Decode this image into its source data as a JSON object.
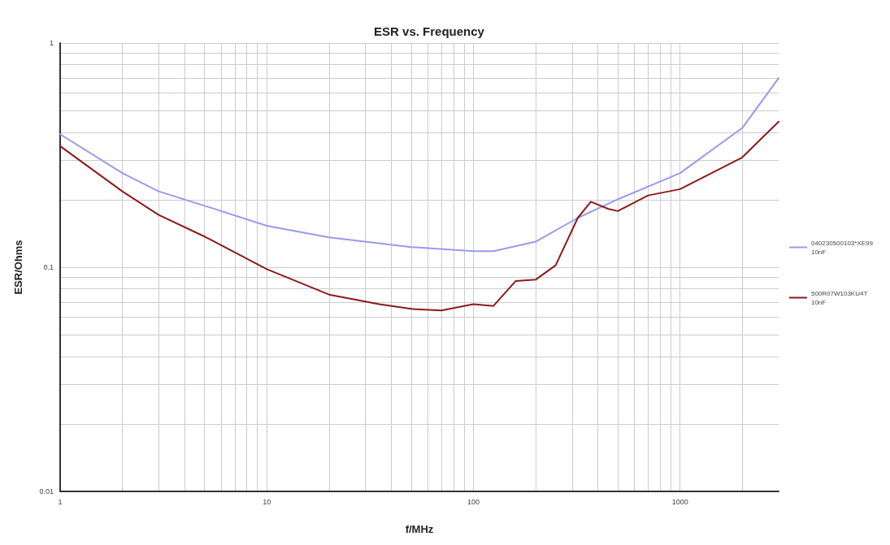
{
  "chart_data": {
    "type": "line",
    "title": "ESR vs. Frequency",
    "xlabel": "f/MHz",
    "ylabel": "ESR/Ohms",
    "log": "xy",
    "grid": true,
    "legend": "right",
    "marker": "none",
    "line_style": "solid",
    "xlim": [
      1,
      3000
    ],
    "xticks": [
      1,
      {
        "value": 2,
        "label": null
      },
      {
        "value": 3,
        "label": null
      },
      {
        "value": 4,
        "label": null
      },
      {
        "value": 5,
        "label": null
      },
      {
        "value": 6,
        "label": null
      },
      {
        "value": 7,
        "label": null
      },
      {
        "value": 8,
        "label": null
      },
      {
        "value": 9,
        "label": null
      },
      10,
      {
        "value": 20,
        "label": null
      },
      {
        "value": 30,
        "label": null
      },
      {
        "value": 40,
        "label": null
      },
      {
        "value": 50,
        "label": null
      },
      {
        "value": 60,
        "label": null
      },
      {
        "value": 70,
        "label": null
      },
      {
        "value": 80,
        "label": null
      },
      {
        "value": 90,
        "label": null
      },
      100,
      {
        "value": 200,
        "label": null
      },
      {
        "value": 300,
        "label": null
      },
      {
        "value": 400,
        "label": null
      },
      {
        "value": 500,
        "label": null
      },
      {
        "value": 600,
        "label": null
      },
      {
        "value": 700,
        "label": null
      },
      {
        "value": 800,
        "label": null
      },
      {
        "value": 900,
        "label": null
      },
      1000,
      {
        "value": 2000,
        "label": null
      }
    ],
    "ylim": [
      0.01,
      1
    ],
    "yticks": [
      0.01,
      {
        "value": 0.02,
        "label": null
      },
      {
        "value": 0.03,
        "label": null
      },
      {
        "value": 0.04,
        "label": null
      },
      {
        "value": 0.05,
        "label": null
      },
      {
        "value": 0.06,
        "label": null
      },
      {
        "value": 0.07,
        "label": null
      },
      {
        "value": 0.08,
        "label": null
      },
      {
        "value": 0.09,
        "label": null
      },
      0.1,
      {
        "value": 0.2,
        "label": null
      },
      {
        "value": 0.3,
        "label": null
      },
      {
        "value": 0.4,
        "label": null
      },
      {
        "value": 0.5,
        "label": null
      },
      {
        "value": 0.6,
        "label": null
      },
      {
        "value": 0.7,
        "label": null
      },
      {
        "value": 0.8,
        "label": null
      },
      {
        "value": 0.9,
        "label": null
      },
      1
    ],
    "series": [
      {
        "name": "040230500103*XE99 10nF",
        "color": "#9999ee",
        "x": [
          1,
          2,
          3,
          5,
          10,
          20,
          50,
          100,
          125,
          200,
          320,
          500,
          1000,
          2000,
          3000
        ],
        "values": [
          0.392,
          0.263,
          0.218,
          0.188,
          0.153,
          0.136,
          0.123,
          0.118,
          0.118,
          0.13,
          0.166,
          0.201,
          0.263,
          0.418,
          0.698
        ]
      },
      {
        "name": "500R07W103KU4T 10nF",
        "color": "#8b1a1a",
        "x": [
          1,
          2,
          3,
          5,
          10,
          20,
          35,
          50,
          70,
          100,
          125,
          160,
          200,
          250,
          320,
          370,
          450,
          500,
          700,
          1000,
          2000,
          3000
        ],
        "values": [
          0.347,
          0.218,
          0.171,
          0.137,
          0.098,
          0.0755,
          0.0684,
          0.0652,
          0.0641,
          0.0684,
          0.0672,
          0.0867,
          0.088,
          0.102,
          0.166,
          0.196,
          0.182,
          0.178,
          0.209,
          0.223,
          0.309,
          0.446
        ]
      }
    ]
  }
}
